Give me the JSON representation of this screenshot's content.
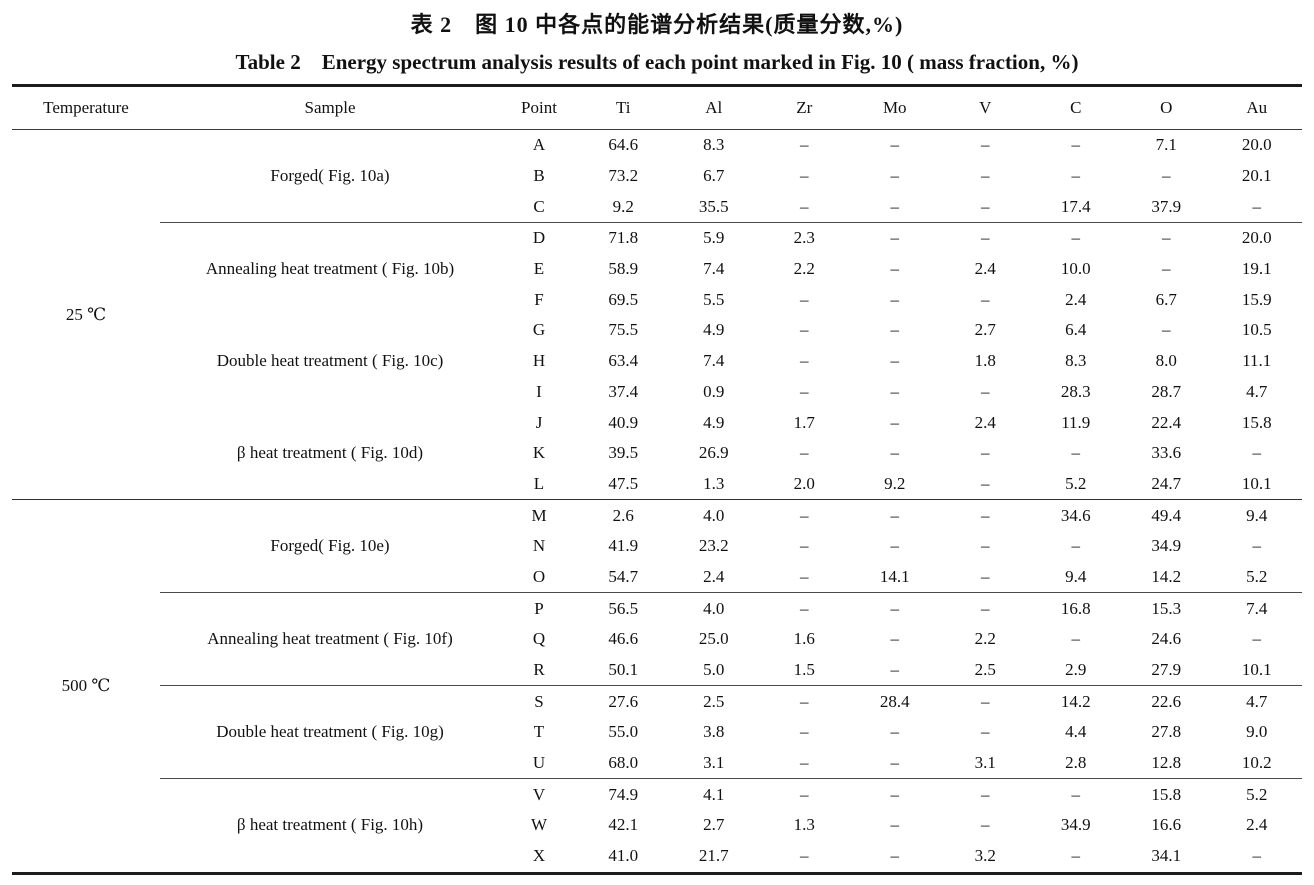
{
  "titles": {
    "zh": "表 2　图 10 中各点的能谱分析结果(质量分数,%)",
    "en": "Table 2　Energy spectrum analysis results of each point marked in Fig. 10 ( mass fraction, %)"
  },
  "table": {
    "headers": [
      "Temperature",
      "Sample",
      "Point",
      "Ti",
      "Al",
      "Zr",
      "Mo",
      "V",
      "C",
      "O",
      "Au"
    ],
    "no_data_symbol": "–",
    "sections": [
      {
        "temperature": "25 ℃",
        "groups": [
          {
            "sample": "Forged( Fig. 10a)",
            "separator_after": true,
            "rows": [
              {
                "point": "A",
                "values": [
                  "64.6",
                  "8.3",
                  "–",
                  "–",
                  "–",
                  "–",
                  "7.1",
                  "20.0"
                ]
              },
              {
                "point": "B",
                "values": [
                  "73.2",
                  "6.7",
                  "–",
                  "–",
                  "–",
                  "–",
                  "–",
                  "20.1"
                ]
              },
              {
                "point": "C",
                "values": [
                  "9.2",
                  "35.5",
                  "–",
                  "–",
                  "–",
                  "17.4",
                  "37.9",
                  "–"
                ]
              }
            ]
          },
          {
            "sample": "Annealing heat treatment ( Fig. 10b)",
            "separator_after": false,
            "rows": [
              {
                "point": "D",
                "values": [
                  "71.8",
                  "5.9",
                  "2.3",
                  "–",
                  "–",
                  "–",
                  "–",
                  "20.0"
                ]
              },
              {
                "point": "E",
                "values": [
                  "58.9",
                  "7.4",
                  "2.2",
                  "–",
                  "2.4",
                  "10.0",
                  "–",
                  "19.1"
                ]
              },
              {
                "point": "F",
                "values": [
                  "69.5",
                  "5.5",
                  "–",
                  "–",
                  "–",
                  "2.4",
                  "6.7",
                  "15.9"
                ]
              }
            ]
          },
          {
            "sample": "Double heat treatment ( Fig. 10c)",
            "separator_after": false,
            "rows": [
              {
                "point": "G",
                "values": [
                  "75.5",
                  "4.9",
                  "–",
                  "–",
                  "2.7",
                  "6.4",
                  "–",
                  "10.5"
                ]
              },
              {
                "point": "H",
                "values": [
                  "63.4",
                  "7.4",
                  "–",
                  "–",
                  "1.8",
                  "8.3",
                  "8.0",
                  "11.1"
                ]
              },
              {
                "point": "I",
                "values": [
                  "37.4",
                  "0.9",
                  "–",
                  "–",
                  "–",
                  "28.3",
                  "28.7",
                  "4.7"
                ]
              }
            ]
          },
          {
            "sample": "β heat treatment ( Fig. 10d)",
            "separator_after": false,
            "rows": [
              {
                "point": "J",
                "values": [
                  "40.9",
                  "4.9",
                  "1.7",
                  "–",
                  "2.4",
                  "11.9",
                  "22.4",
                  "15.8"
                ]
              },
              {
                "point": "K",
                "values": [
                  "39.5",
                  "26.9",
                  "–",
                  "–",
                  "–",
                  "–",
                  "33.6",
                  "–"
                ]
              },
              {
                "point": "L",
                "values": [
                  "47.5",
                  "1.3",
                  "2.0",
                  "9.2",
                  "–",
                  "5.2",
                  "24.7",
                  "10.1"
                ]
              }
            ]
          }
        ]
      },
      {
        "temperature": "500 ℃",
        "groups": [
          {
            "sample": "Forged( Fig. 10e)",
            "separator_after": true,
            "rows": [
              {
                "point": "M",
                "values": [
                  "2.6",
                  "4.0",
                  "–",
                  "–",
                  "–",
                  "34.6",
                  "49.4",
                  "9.4"
                ]
              },
              {
                "point": "N",
                "values": [
                  "41.9",
                  "23.2",
                  "–",
                  "–",
                  "–",
                  "–",
                  "34.9",
                  "–"
                ]
              },
              {
                "point": "O",
                "values": [
                  "54.7",
                  "2.4",
                  "–",
                  "14.1",
                  "–",
                  "9.4",
                  "14.2",
                  "5.2"
                ]
              }
            ]
          },
          {
            "sample": "Annealing heat treatment ( Fig. 10f)",
            "separator_after": true,
            "rows": [
              {
                "point": "P",
                "values": [
                  "56.5",
                  "4.0",
                  "–",
                  "–",
                  "–",
                  "16.8",
                  "15.3",
                  "7.4"
                ]
              },
              {
                "point": "Q",
                "values": [
                  "46.6",
                  "25.0",
                  "1.6",
                  "–",
                  "2.2",
                  "–",
                  "24.6",
                  "–"
                ]
              },
              {
                "point": "R",
                "values": [
                  "50.1",
                  "5.0",
                  "1.5",
                  "–",
                  "2.5",
                  "2.9",
                  "27.9",
                  "10.1"
                ]
              }
            ]
          },
          {
            "sample": "Double heat treatment ( Fig. 10g)",
            "separator_after": true,
            "rows": [
              {
                "point": "S",
                "values": [
                  "27.6",
                  "2.5",
                  "–",
                  "28.4",
                  "–",
                  "14.2",
                  "22.6",
                  "4.7"
                ]
              },
              {
                "point": "T",
                "values": [
                  "55.0",
                  "3.8",
                  "–",
                  "–",
                  "–",
                  "4.4",
                  "27.8",
                  "9.0"
                ]
              },
              {
                "point": "U",
                "values": [
                  "68.0",
                  "3.1",
                  "–",
                  "–",
                  "3.1",
                  "2.8",
                  "12.8",
                  "10.2"
                ]
              }
            ]
          },
          {
            "sample": "β heat treatment ( Fig. 10h)",
            "separator_after": false,
            "rows": [
              {
                "point": "V",
                "values": [
                  "74.9",
                  "4.1",
                  "–",
                  "–",
                  "–",
                  "–",
                  "15.8",
                  "5.2"
                ]
              },
              {
                "point": "W",
                "values": [
                  "42.1",
                  "2.7",
                  "1.3",
                  "–",
                  "–",
                  "34.9",
                  "16.6",
                  "2.4"
                ]
              },
              {
                "point": "X",
                "values": [
                  "41.0",
                  "21.7",
                  "–",
                  "–",
                  "3.2",
                  "–",
                  "34.1",
                  "–"
                ]
              }
            ]
          }
        ]
      }
    ]
  }
}
